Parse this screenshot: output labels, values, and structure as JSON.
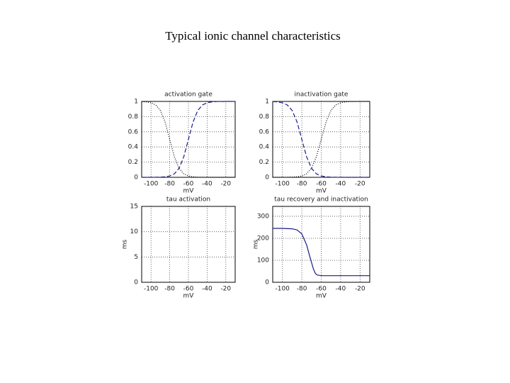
{
  "title": "Typical ionic channel characteristics",
  "chart_data": [
    {
      "type": "line",
      "title": "activation gate",
      "xlabel": "mV",
      "x": [
        -110,
        -105,
        -100,
        -95,
        -90,
        -85,
        -80,
        -75,
        -70,
        -65,
        -60,
        -55,
        -50,
        -45,
        -40,
        -35,
        -30,
        -25,
        -20,
        -15,
        -10
      ],
      "xlim": [
        -110,
        -10
      ],
      "xticks": [
        -100,
        -80,
        -60,
        -40,
        -20
      ],
      "ylim": [
        0,
        1
      ],
      "yticks": [
        0,
        0.2,
        0.4,
        0.6,
        0.8,
        1
      ],
      "grid": true,
      "series": [
        {
          "color": "#1a1a8c",
          "style": "dashed",
          "values": [
            0,
            0.0001,
            0.0003,
            0.0009,
            0.0025,
            0.0067,
            0.018,
            0.047,
            0.119,
            0.269,
            0.5,
            0.731,
            0.881,
            0.953,
            0.982,
            0.993,
            0.998,
            0.999,
            1,
            1,
            1
          ]
        },
        {
          "color": "#000000",
          "style": "dotted",
          "values": [
            0.998,
            0.993,
            0.982,
            0.953,
            0.881,
            0.731,
            0.5,
            0.269,
            0.119,
            0.047,
            0.018,
            0.007,
            0.002,
            0.001,
            0,
            0,
            0,
            0,
            0,
            0,
            0
          ]
        }
      ]
    },
    {
      "type": "line",
      "title": "inactivation gate",
      "xlabel": "mV",
      "x": [
        -110,
        -105,
        -100,
        -95,
        -90,
        -85,
        -80,
        -75,
        -70,
        -65,
        -60,
        -55,
        -50,
        -45,
        -40,
        -35,
        -30,
        -25,
        -20,
        -15,
        -10
      ],
      "xlim": [
        -110,
        -10
      ],
      "xticks": [
        -100,
        -80,
        -60,
        -40,
        -20
      ],
      "ylim": [
        0,
        1
      ],
      "yticks": [
        0,
        0.2,
        0.4,
        0.6,
        0.8,
        1
      ],
      "grid": true,
      "series": [
        {
          "color": "#1a1a8c",
          "style": "dashed",
          "values": [
            0.998,
            0.993,
            0.982,
            0.953,
            0.881,
            0.731,
            0.5,
            0.269,
            0.119,
            0.047,
            0.018,
            0.007,
            0.002,
            0.001,
            0,
            0,
            0,
            0,
            0,
            0,
            0
          ]
        },
        {
          "color": "#000000",
          "style": "dotted",
          "values": [
            0,
            0.0001,
            0.0003,
            0.0009,
            0.0025,
            0.0067,
            0.018,
            0.047,
            0.119,
            0.269,
            0.5,
            0.731,
            0.881,
            0.953,
            0.982,
            0.993,
            0.998,
            0.999,
            1,
            1,
            1
          ]
        }
      ]
    },
    {
      "type": "line",
      "title": "tau activation",
      "xlabel": "mV",
      "ylabel": "ms",
      "x": [],
      "xlim": [
        -110,
        -10
      ],
      "xticks": [
        -100,
        -80,
        -60,
        -40,
        -20
      ],
      "ylim": [
        0,
        15
      ],
      "yticks": [
        0,
        5,
        10,
        15
      ],
      "grid": true,
      "series": []
    },
    {
      "type": "line",
      "title": "tau recovery and inactivation",
      "xlabel": "mV",
      "ylabel": "ms",
      "x": [
        -110,
        -100,
        -90,
        -85,
        -80,
        -75,
        -72,
        -70,
        -68,
        -66,
        -64,
        -60,
        -40,
        -20,
        -10
      ],
      "xlim": [
        -110,
        -10
      ],
      "xticks": [
        -100,
        -80,
        -60,
        -40,
        -20
      ],
      "ylim": [
        0,
        345
      ],
      "yticks": [
        0,
        100,
        200,
        300
      ],
      "grid": true,
      "series": [
        {
          "color": "#1a1a8c",
          "style": "solid",
          "values": [
            245,
            245,
            243,
            238,
            220,
            170,
            120,
            90,
            60,
            40,
            33,
            30,
            30,
            30,
            30
          ]
        }
      ]
    }
  ]
}
